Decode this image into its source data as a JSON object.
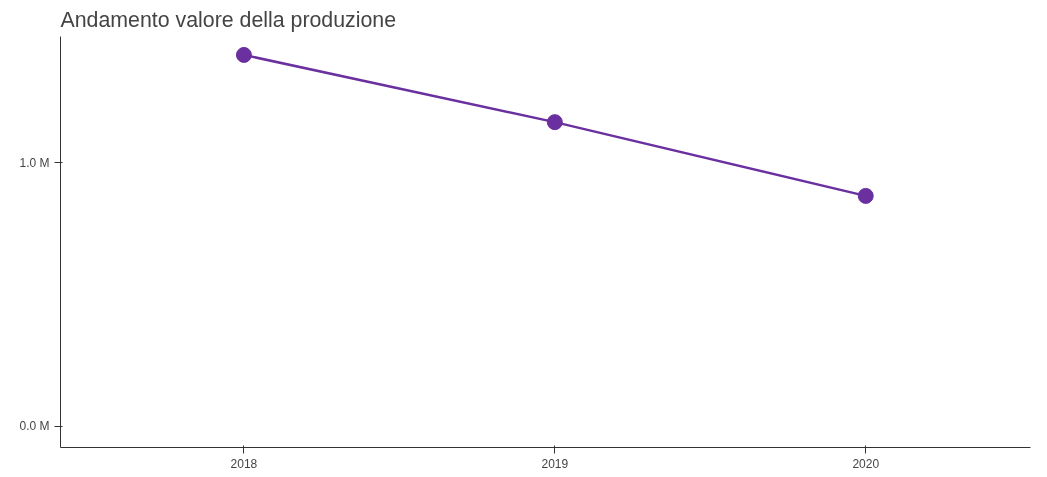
{
  "chart_data": {
    "type": "line",
    "title": "Andamento valore della produzione",
    "x": [
      2018,
      2019,
      2020
    ],
    "series": [
      {
        "color": "#6a30a0",
        "values": [
          1.41,
          1.155,
          0.875
        ]
      }
    ],
    "xlim": [
      2017.41,
      2020.53
    ],
    "xticks": [
      2018,
      2019,
      2020
    ],
    "ylim": [
      -0.08,
      1.48
    ],
    "yticks": [
      {
        "value": 0,
        "label": "0.0 M"
      },
      {
        "value": 1,
        "label": "1.0 M"
      }
    ],
    "marker": "circle",
    "line_style": "solid",
    "grid": false
  }
}
